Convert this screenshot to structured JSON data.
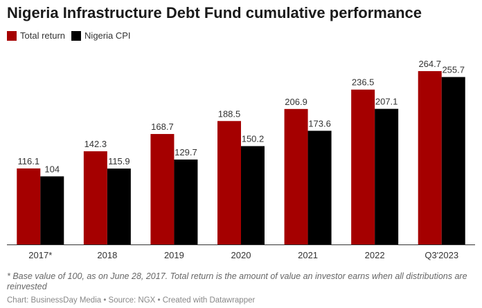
{
  "chart_data": {
    "type": "bar",
    "title": "Nigeria Infrastructure Debt Fund cumulative performance",
    "categories": [
      "2017*",
      "2018",
      "2019",
      "2020",
      "2021",
      "2022",
      "Q3'2023"
    ],
    "series": [
      {
        "name": "Total return",
        "color": "#a50000",
        "values": [
          116.1,
          142.3,
          168.7,
          188.5,
          206.9,
          236.5,
          264.7
        ]
      },
      {
        "name": "Nigeria CPI",
        "color": "#000000",
        "values": [
          104,
          115.9,
          129.7,
          150.2,
          173.6,
          207.1,
          255.7
        ]
      }
    ],
    "ylim": [
      0,
      264.7
    ],
    "grid": false,
    "legend": "top-left",
    "note": "* Base value of 100, as on June 28, 2017. Total return is the amount of value an investor earns when all distributions are reinvested",
    "credit": "Chart: BusinessDay Media • Source: NGX • Created with Datawrapper"
  }
}
